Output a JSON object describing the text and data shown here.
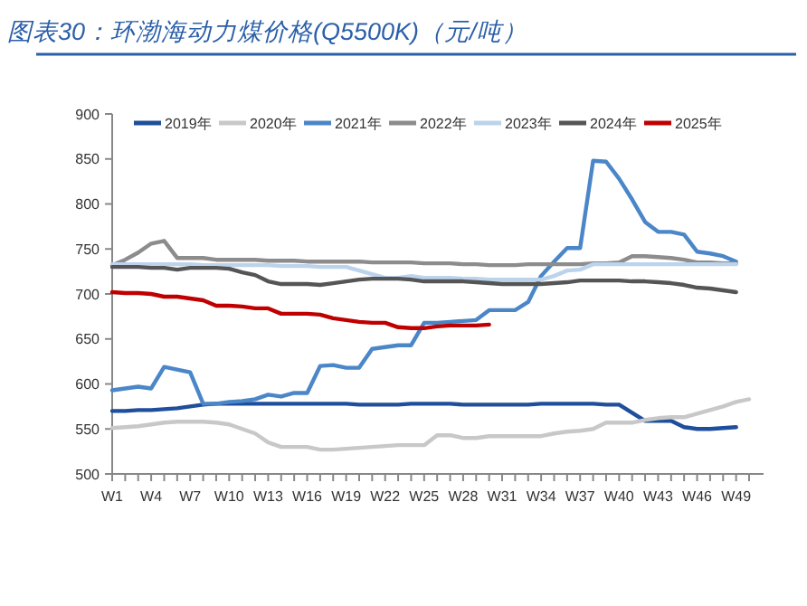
{
  "chart_data": {
    "type": "line",
    "title": "图表30：环渤海动力煤价格(Q5500K)（元/吨）",
    "categories": [
      "W1",
      null,
      null,
      "W4",
      null,
      null,
      "W7",
      null,
      null,
      "W10",
      null,
      null,
      "W13",
      null,
      null,
      "W16",
      null,
      null,
      "W19",
      null,
      null,
      "W22",
      null,
      null,
      "W25",
      null,
      null,
      "W28",
      null,
      null,
      "W31",
      null,
      null,
      "W34",
      null,
      null,
      "W37",
      null,
      null,
      "W40",
      null,
      null,
      "W43",
      null,
      null,
      "W46",
      null,
      null,
      "W49",
      null
    ],
    "ylim": [
      500,
      900
    ],
    "yticks": [
      500,
      550,
      600,
      650,
      700,
      750,
      800,
      850,
      900
    ],
    "grid": false,
    "legend": "top",
    "marker": "none",
    "line_style": "solid",
    "series": [
      {
        "name": "2019年",
        "color": "#1f4e9c",
        "values": [
          570,
          570,
          571,
          571,
          572,
          573,
          575,
          577,
          578,
          578,
          578,
          578,
          578,
          578,
          578,
          578,
          578,
          578,
          578,
          577,
          577,
          577,
          577,
          578,
          578,
          578,
          578,
          577,
          577,
          577,
          577,
          577,
          577,
          578,
          578,
          578,
          578,
          578,
          577,
          577,
          568,
          559,
          559,
          559,
          552,
          550,
          550,
          551,
          552,
          null
        ]
      },
      {
        "name": "2020年",
        "color": "#c8c8c8",
        "values": [
          551,
          552,
          553,
          555,
          557,
          558,
          558,
          558,
          557,
          555,
          550,
          545,
          535,
          530,
          530,
          530,
          527,
          527,
          528,
          529,
          530,
          531,
          532,
          532,
          532,
          543,
          543,
          540,
          540,
          542,
          542,
          542,
          542,
          542,
          545,
          547,
          548,
          550,
          557,
          557,
          557,
          560,
          562,
          563,
          563,
          567,
          571,
          575,
          580,
          583
        ]
      },
      {
        "name": "2021年",
        "color": "#4a86c8",
        "values": [
          593,
          595,
          597,
          595,
          619,
          616,
          613,
          578,
          578,
          580,
          581,
          583,
          588,
          586,
          590,
          590,
          620,
          621,
          618,
          618,
          639,
          641,
          643,
          643,
          668,
          668,
          669,
          670,
          671,
          682,
          682,
          682,
          691,
          720,
          736,
          751,
          751,
          848,
          847,
          828,
          805,
          780,
          769,
          769,
          766,
          747,
          745,
          742,
          736,
          null
        ]
      },
      {
        "name": "2022年",
        "color": "#8c8c8c",
        "values": [
          732,
          738,
          746,
          756,
          759,
          740,
          740,
          740,
          738,
          738,
          738,
          738,
          737,
          737,
          737,
          736,
          736,
          736,
          736,
          736,
          735,
          735,
          735,
          735,
          734,
          734,
          734,
          733,
          733,
          732,
          732,
          732,
          733,
          733,
          733,
          733,
          733,
          734,
          734,
          735,
          742,
          742,
          741,
          740,
          738,
          735,
          735,
          734,
          734,
          null
        ]
      },
      {
        "name": "2023年",
        "color": "#bcd3ec",
        "values": [
          733,
          733,
          733,
          733,
          733,
          733,
          733,
          732,
          732,
          732,
          732,
          732,
          732,
          731,
          731,
          731,
          730,
          730,
          730,
          726,
          722,
          718,
          718,
          720,
          718,
          718,
          718,
          717,
          717,
          716,
          716,
          716,
          716,
          716,
          720,
          726,
          727,
          733,
          733,
          733,
          733,
          733,
          733,
          733,
          733,
          733,
          733,
          733,
          733,
          null
        ]
      },
      {
        "name": "2024年",
        "color": "#555555",
        "values": [
          730,
          730,
          730,
          729,
          729,
          727,
          729,
          729,
          729,
          728,
          724,
          721,
          714,
          711,
          711,
          711,
          710,
          712,
          714,
          716,
          717,
          717,
          717,
          716,
          714,
          714,
          714,
          714,
          713,
          712,
          711,
          711,
          711,
          711,
          712,
          713,
          715,
          715,
          715,
          715,
          714,
          714,
          713,
          712,
          710,
          707,
          706,
          704,
          702,
          null
        ]
      },
      {
        "name": "2025年",
        "color": "#c00000",
        "values": [
          702,
          701,
          701,
          700,
          697,
          697,
          695,
          693,
          687,
          687,
          686,
          684,
          684,
          678,
          678,
          678,
          677,
          673,
          671,
          669,
          668,
          668,
          663,
          662,
          662,
          664,
          665,
          665,
          665,
          666,
          null,
          null,
          null,
          null,
          null,
          null,
          null,
          null,
          null,
          null,
          null,
          null,
          null,
          null,
          null,
          null,
          null,
          null,
          null,
          null
        ]
      }
    ]
  }
}
